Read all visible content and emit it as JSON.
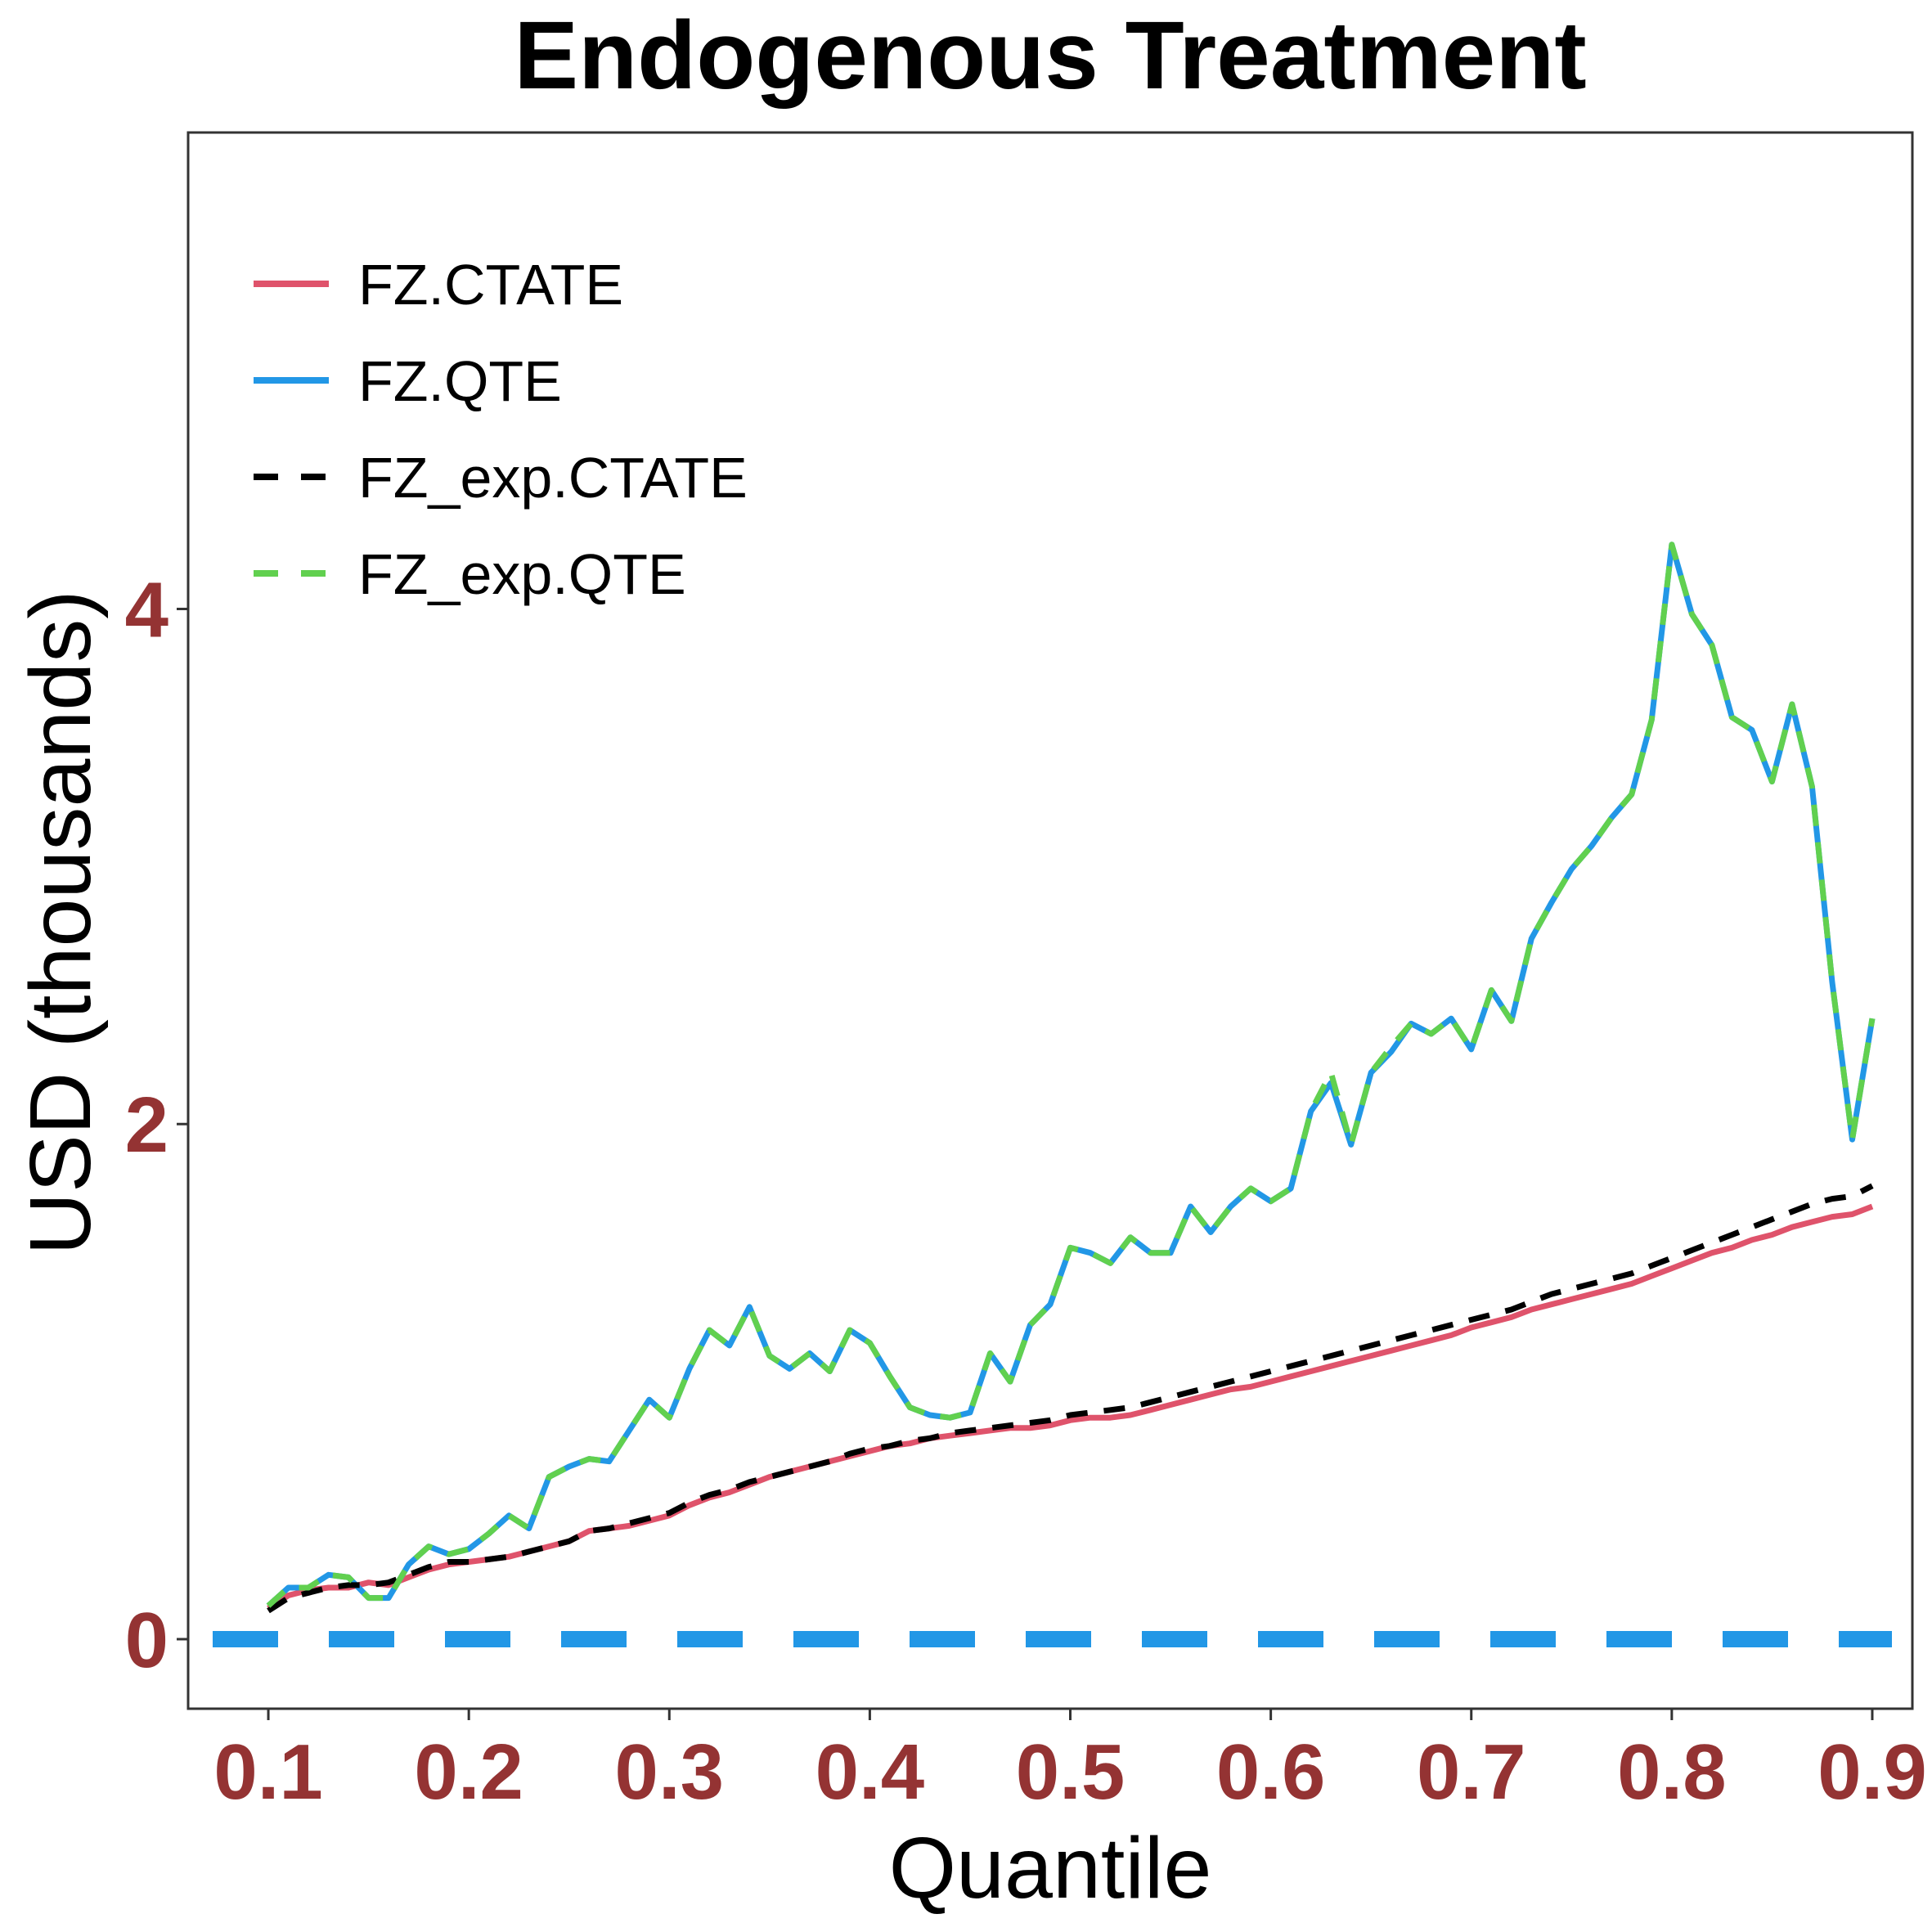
{
  "chart_data": {
    "type": "line",
    "title": "Endogenous Treatment",
    "xlabel": "Quantile",
    "ylabel": "USD (thousands)",
    "xlim": [
      0.06,
      0.92
    ],
    "ylim": [
      -0.27,
      5.85
    ],
    "xticks": [
      0.1,
      0.2,
      0.3,
      0.4,
      0.5,
      0.6,
      0.7,
      0.8,
      0.9
    ],
    "xtick_labels": [
      "0.1",
      "0.2",
      "0.3",
      "0.4",
      "0.5",
      "0.6",
      "0.7",
      "0.8",
      "0.9"
    ],
    "yticks": [
      0,
      2,
      4
    ],
    "ytick_labels": [
      "0",
      "2",
      "4"
    ],
    "grid": false,
    "legend_position": "top-left",
    "x": [
      0.1,
      0.11,
      0.12,
      0.13,
      0.14,
      0.15,
      0.16,
      0.17,
      0.18,
      0.19,
      0.2,
      0.21,
      0.22,
      0.23,
      0.24,
      0.25,
      0.26,
      0.27,
      0.28,
      0.29,
      0.3,
      0.31,
      0.32,
      0.33,
      0.34,
      0.35,
      0.36,
      0.37,
      0.38,
      0.39,
      0.4,
      0.41,
      0.42,
      0.43,
      0.44,
      0.45,
      0.46,
      0.47,
      0.48,
      0.49,
      0.5,
      0.51,
      0.52,
      0.53,
      0.54,
      0.55,
      0.56,
      0.57,
      0.58,
      0.59,
      0.6,
      0.61,
      0.62,
      0.63,
      0.64,
      0.65,
      0.66,
      0.67,
      0.68,
      0.69,
      0.7,
      0.71,
      0.72,
      0.73,
      0.74,
      0.75,
      0.76,
      0.77,
      0.78,
      0.79,
      0.8,
      0.81,
      0.82,
      0.83,
      0.84,
      0.85,
      0.86,
      0.87,
      0.88,
      0.89,
      0.9
    ],
    "series": [
      {
        "name": "FZ.CTATE",
        "color": "#DF536B",
        "dash": "solid",
        "values": [
          0.12,
          0.17,
          0.19,
          0.2,
          0.2,
          0.22,
          0.21,
          0.24,
          0.27,
          0.29,
          0.3,
          0.31,
          0.32,
          0.34,
          0.36,
          0.38,
          0.42,
          0.43,
          0.44,
          0.46,
          0.48,
          0.52,
          0.55,
          0.57,
          0.6,
          0.63,
          0.65,
          0.67,
          0.69,
          0.71,
          0.73,
          0.75,
          0.76,
          0.78,
          0.79,
          0.8,
          0.81,
          0.82,
          0.82,
          0.83,
          0.85,
          0.86,
          0.86,
          0.87,
          0.89,
          0.91,
          0.93,
          0.95,
          0.97,
          0.98,
          1.0,
          1.02,
          1.04,
          1.06,
          1.08,
          1.1,
          1.12,
          1.14,
          1.16,
          1.18,
          1.21,
          1.23,
          1.25,
          1.28,
          1.3,
          1.32,
          1.34,
          1.36,
          1.38,
          1.41,
          1.44,
          1.47,
          1.5,
          1.52,
          1.55,
          1.57,
          1.6,
          1.62,
          1.64,
          1.65,
          1.68
        ]
      },
      {
        "name": "FZ.QTE",
        "color": "#2297E6",
        "dash": "solid",
        "values": [
          0.13,
          0.2,
          0.2,
          0.25,
          0.24,
          0.16,
          0.16,
          0.29,
          0.36,
          0.33,
          0.35,
          0.41,
          0.48,
          0.43,
          0.63,
          0.67,
          0.7,
          0.69,
          0.81,
          0.93,
          0.86,
          1.05,
          1.2,
          1.14,
          1.29,
          1.1,
          1.05,
          1.11,
          1.04,
          1.2,
          1.15,
          1.02,
          0.9,
          0.87,
          0.86,
          0.88,
          1.11,
          1.0,
          1.22,
          1.3,
          1.52,
          1.5,
          1.46,
          1.56,
          1.5,
          1.5,
          1.68,
          1.58,
          1.68,
          1.75,
          1.7,
          1.75,
          2.05,
          2.16,
          1.92,
          2.2,
          2.28,
          2.39,
          2.35,
          2.41,
          2.29,
          2.52,
          2.4,
          2.72,
          2.86,
          2.99,
          3.08,
          3.19,
          3.28,
          3.57,
          4.25,
          3.98,
          3.86,
          3.58,
          3.53,
          3.33,
          3.63,
          3.31,
          2.55,
          1.94,
          2.41
        ]
      },
      {
        "name": "FZ_exp.CTATE",
        "color": "#000000",
        "dash": "dashed",
        "values": [
          0.11,
          0.16,
          0.18,
          0.2,
          0.21,
          0.21,
          0.22,
          0.25,
          0.28,
          0.3,
          0.3,
          0.31,
          0.32,
          0.34,
          0.36,
          0.38,
          0.42,
          0.43,
          0.45,
          0.47,
          0.49,
          0.53,
          0.56,
          0.58,
          0.61,
          0.63,
          0.65,
          0.67,
          0.69,
          0.72,
          0.74,
          0.75,
          0.77,
          0.78,
          0.8,
          0.81,
          0.82,
          0.83,
          0.84,
          0.85,
          0.87,
          0.88,
          0.89,
          0.9,
          0.92,
          0.94,
          0.96,
          0.98,
          1.0,
          1.02,
          1.04,
          1.06,
          1.08,
          1.1,
          1.12,
          1.14,
          1.16,
          1.18,
          1.2,
          1.22,
          1.24,
          1.26,
          1.28,
          1.31,
          1.34,
          1.36,
          1.38,
          1.4,
          1.42,
          1.45,
          1.48,
          1.51,
          1.54,
          1.57,
          1.6,
          1.63,
          1.66,
          1.69,
          1.71,
          1.72,
          1.76
        ]
      },
      {
        "name": "FZ_exp.QTE",
        "color": "#61D04F",
        "dash": "dashed",
        "values": [
          0.13,
          0.2,
          0.2,
          0.25,
          0.24,
          0.16,
          0.16,
          0.29,
          0.36,
          0.33,
          0.35,
          0.41,
          0.48,
          0.43,
          0.63,
          0.67,
          0.7,
          0.69,
          0.81,
          0.93,
          0.86,
          1.05,
          1.2,
          1.14,
          1.29,
          1.1,
          1.05,
          1.11,
          1.04,
          1.2,
          1.15,
          1.02,
          0.9,
          0.87,
          0.86,
          0.88,
          1.11,
          1.0,
          1.22,
          1.3,
          1.52,
          1.5,
          1.46,
          1.56,
          1.5,
          1.5,
          1.68,
          1.58,
          1.68,
          1.75,
          1.7,
          1.75,
          2.05,
          2.2,
          1.92,
          2.2,
          2.3,
          2.39,
          2.35,
          2.41,
          2.29,
          2.52,
          2.4,
          2.72,
          2.86,
          2.99,
          3.08,
          3.19,
          3.28,
          3.57,
          4.25,
          3.98,
          3.86,
          3.58,
          3.53,
          3.33,
          3.63,
          3.31,
          2.55,
          1.94,
          2.41
        ]
      }
    ],
    "reference_line": {
      "y": 0,
      "color": "#2297E6",
      "dash": "dashed"
    }
  }
}
